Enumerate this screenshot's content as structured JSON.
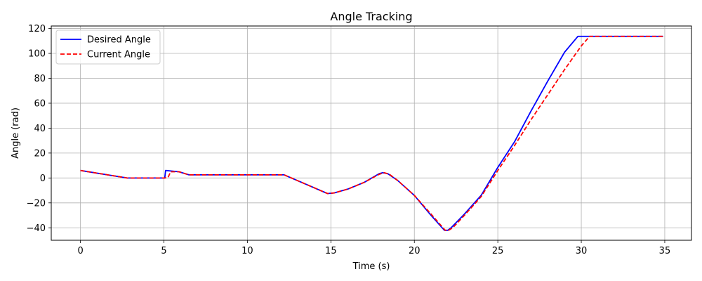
{
  "chart_data": {
    "type": "line",
    "title": "Angle Tracking",
    "xlabel": "Time (s)",
    "ylabel": "Angle (rad)",
    "xlim": [
      -1.75,
      36.6
    ],
    "ylim": [
      -50,
      122
    ],
    "xticks": [
      0,
      5,
      10,
      15,
      20,
      25,
      30,
      35
    ],
    "yticks": [
      -40,
      -20,
      0,
      20,
      40,
      60,
      80,
      100,
      120
    ],
    "grid": true,
    "legend_position": "top-left",
    "series": [
      {
        "name": "Desired Angle",
        "color": "#0000ff",
        "style": "solid",
        "x": [
          0,
          2.8,
          5.05,
          5.1,
          5.9,
          6.5,
          12.2,
          13.5,
          14.8,
          15.2,
          16.0,
          17.0,
          17.9,
          18.1,
          18.4,
          19.0,
          20.0,
          21.0,
          21.8,
          22.0,
          22.2,
          23.0,
          24.0,
          25.0,
          26.0,
          27.0,
          28.0,
          29.0,
          29.8,
          30.0,
          34.9
        ],
        "y": [
          6,
          0,
          0,
          6,
          5,
          2.5,
          2.5,
          -5,
          -12.5,
          -12,
          -9,
          -3.5,
          3.5,
          4.2,
          3.5,
          -2,
          -14,
          -30,
          -42,
          -42,
          -40,
          -29,
          -14,
          8.5,
          29,
          54,
          78,
          101,
          113.7,
          113.7,
          113.7
        ]
      },
      {
        "name": "Current Angle",
        "color": "#ff0000",
        "style": "dashed",
        "x": [
          0,
          2.8,
          5.05,
          5.25,
          5.4,
          5.9,
          6.5,
          12.2,
          13.5,
          14.8,
          15.2,
          16.0,
          17.0,
          17.9,
          18.2,
          18.5,
          19.0,
          20.0,
          21.0,
          21.85,
          22.05,
          22.3,
          23.0,
          24.0,
          25.0,
          26.0,
          27.0,
          28.0,
          29.0,
          30.0,
          30.5,
          34.9
        ],
        "y": [
          6,
          0,
          0,
          0.5,
          5,
          5,
          2.5,
          2.5,
          -5,
          -12.5,
          -12,
          -9,
          -3.5,
          3,
          4.2,
          3,
          -2,
          -14,
          -29,
          -42,
          -42,
          -40,
          -30,
          -15,
          6,
          26,
          47,
          67,
          87,
          106,
          113.7,
          113.7
        ]
      }
    ]
  }
}
